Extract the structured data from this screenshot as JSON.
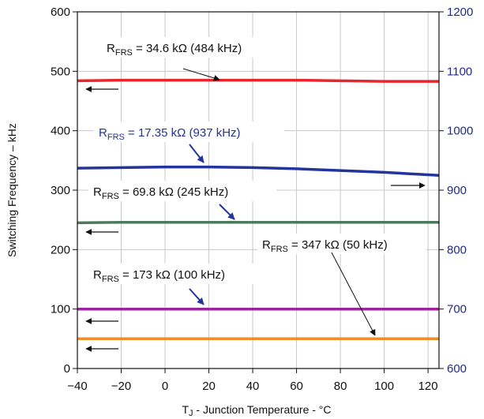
{
  "chart_data": {
    "type": "line",
    "xlabel_main": "T",
    "xlabel_sub": "J",
    "xlabel_rest": " - Junction Temperature - °C",
    "ylabel": "Switching Frequency – kHz",
    "xlim": [
      -40,
      125
    ],
    "ylim": [
      0,
      600
    ],
    "y2lim": [
      600,
      1200
    ],
    "xticks": [
      "−40",
      "−20",
      "0",
      "20",
      "40",
      "60",
      "80",
      "100",
      "120"
    ],
    "xtick_values": [
      -40,
      -20,
      0,
      20,
      40,
      60,
      80,
      100,
      120
    ],
    "yticks": [
      "0",
      "100",
      "200",
      "300",
      "400",
      "500",
      "600"
    ],
    "ytick_values": [
      0,
      100,
      200,
      300,
      400,
      500,
      600
    ],
    "y2ticks": [
      "600",
      "700",
      "800",
      "900",
      "1000",
      "1100",
      "1200"
    ],
    "y2tick_values": [
      600,
      700,
      800,
      900,
      1000,
      1100,
      1200
    ],
    "grid": true,
    "series": [
      {
        "id": "484",
        "axis": "left",
        "color": "#e8262b",
        "x": [
          -40,
          -20,
          0,
          20,
          40,
          60,
          80,
          100,
          125
        ],
        "y": [
          484,
          485,
          485,
          485,
          485,
          485,
          484,
          483,
          483
        ]
      },
      {
        "id": "937",
        "axis": "right",
        "color": "#23349a",
        "x": [
          -40,
          -20,
          0,
          20,
          40,
          60,
          80,
          100,
          125
        ],
        "y": [
          937,
          938,
          939,
          939,
          938,
          936,
          933,
          930,
          925
        ]
      },
      {
        "id": "245",
        "axis": "left",
        "color": "#4d7a5f",
        "x": [
          -40,
          -20,
          0,
          20,
          40,
          60,
          80,
          100,
          125
        ],
        "y": [
          245,
          246,
          246,
          246,
          246,
          246,
          246,
          246,
          246
        ]
      },
      {
        "id": "100",
        "axis": "left",
        "color": "#9b259b",
        "x": [
          -40,
          0,
          40,
          80,
          125
        ],
        "y": [
          100,
          100,
          100,
          100,
          100
        ]
      },
      {
        "id": "50",
        "axis": "left",
        "color": "#f28c28",
        "x": [
          -40,
          0,
          40,
          80,
          125
        ],
        "y": [
          50,
          50,
          50,
          50,
          50
        ]
      }
    ],
    "annotations": [
      {
        "id": "a484",
        "pre": "R",
        "sub": "FRS",
        "post": " = 34.6 kΩ (484 kHz)",
        "color": "#111111"
      },
      {
        "id": "a937",
        "pre": "R",
        "sub": "FRS",
        "post": " = 17.35 kΩ (937 kHz)",
        "color": "#23349a"
      },
      {
        "id": "a245",
        "pre": "R",
        "sub": "FRS",
        "post": " = 69.8 kΩ (245 kHz)",
        "color": "#111111"
      },
      {
        "id": "a50",
        "pre": "R",
        "sub": "FRS",
        "post": " = 347 kΩ (50 kHz)",
        "color": "#111111"
      },
      {
        "id": "a100",
        "pre": "R",
        "sub": "FRS",
        "post": " = 173 kΩ (100 kHz)",
        "color": "#111111"
      }
    ]
  }
}
